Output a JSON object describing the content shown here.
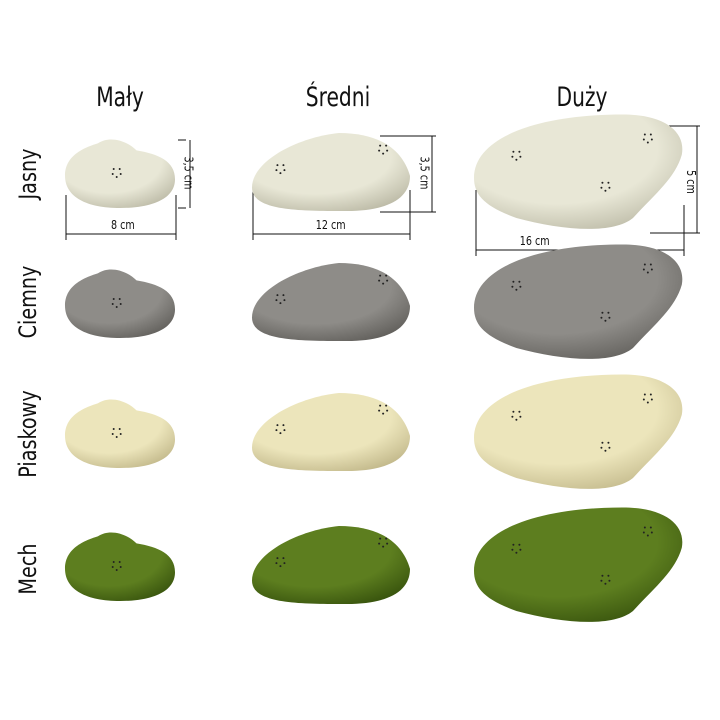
{
  "columns": [
    {
      "label": "Mały"
    },
    {
      "label": "Średni"
    },
    {
      "label": "Duży"
    }
  ],
  "rows": [
    {
      "label": "Jasny",
      "color": "#e8e7d6",
      "shade": "#b9b7a3"
    },
    {
      "label": "Ciemny",
      "color": "#8e8c88",
      "shade": "#5e5c58"
    },
    {
      "label": "Piaskowy",
      "color": "#ece5bb",
      "shade": "#bfb587"
    },
    {
      "label": "Mech",
      "color": "#5d7e1f",
      "shade": "#35500c"
    }
  ],
  "dimensions": {
    "small_height": "3,5 cm",
    "small_width": "8 cm",
    "medium_height": "3,5 cm",
    "medium_width": "12 cm",
    "large_height": "5 cm",
    "large_width": "16 cm"
  }
}
